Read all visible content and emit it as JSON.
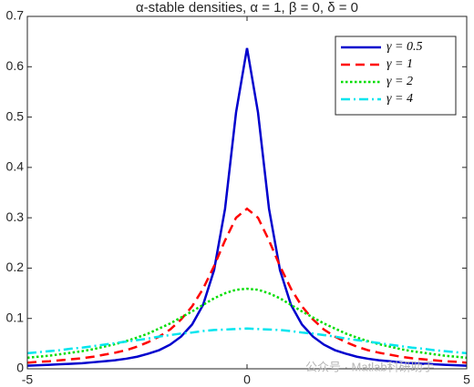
{
  "chart_data": {
    "type": "line",
    "title": "α-stable densities, α = 1, β = 0, δ = 0",
    "x": [
      -5,
      -4.75,
      -4.5,
      -4.25,
      -4,
      -3.75,
      -3.5,
      -3.25,
      -3,
      -2.75,
      -2.5,
      -2.25,
      -2,
      -1.75,
      -1.5,
      -1.25,
      -1,
      -0.75,
      -0.5,
      -0.25,
      0,
      0.25,
      0.5,
      0.75,
      1,
      1.25,
      1.5,
      1.75,
      2,
      2.25,
      2.5,
      2.75,
      3,
      3.25,
      3.5,
      3.75,
      4,
      4.25,
      4.5,
      4.75,
      5
    ],
    "series": [
      {
        "name": "γ = 0.5",
        "color": "#0000cd",
        "line_style": "solid",
        "values": [
          0.006,
          0.007,
          0.008,
          0.009,
          0.01,
          0.011,
          0.013,
          0.015,
          0.017,
          0.02,
          0.024,
          0.03,
          0.037,
          0.048,
          0.064,
          0.088,
          0.127,
          0.196,
          0.318,
          0.509,
          0.637,
          0.509,
          0.318,
          0.196,
          0.127,
          0.088,
          0.064,
          0.048,
          0.037,
          0.03,
          0.024,
          0.02,
          0.017,
          0.015,
          0.013,
          0.011,
          0.01,
          0.009,
          0.008,
          0.007,
          0.006
        ]
      },
      {
        "name": "γ = 1",
        "color": "#ff0000",
        "line_style": "dashed",
        "values": [
          0.012,
          0.014,
          0.015,
          0.017,
          0.019,
          0.021,
          0.024,
          0.028,
          0.032,
          0.037,
          0.044,
          0.053,
          0.064,
          0.078,
          0.098,
          0.124,
          0.159,
          0.204,
          0.255,
          0.3,
          0.318,
          0.3,
          0.255,
          0.204,
          0.159,
          0.124,
          0.098,
          0.078,
          0.064,
          0.053,
          0.044,
          0.037,
          0.032,
          0.028,
          0.024,
          0.021,
          0.019,
          0.017,
          0.015,
          0.014,
          0.012
        ]
      },
      {
        "name": "γ = 2",
        "color": "#00dd00",
        "line_style": "dotted",
        "values": [
          0.022,
          0.024,
          0.026,
          0.029,
          0.032,
          0.035,
          0.039,
          0.044,
          0.049,
          0.055,
          0.062,
          0.07,
          0.08,
          0.09,
          0.102,
          0.114,
          0.127,
          0.14,
          0.15,
          0.157,
          0.159,
          0.157,
          0.15,
          0.14,
          0.127,
          0.114,
          0.102,
          0.09,
          0.08,
          0.07,
          0.062,
          0.055,
          0.049,
          0.044,
          0.039,
          0.035,
          0.032,
          0.029,
          0.026,
          0.024,
          0.022
        ]
      },
      {
        "name": "γ = 4",
        "color": "#00e5ee",
        "line_style": "dashdot",
        "values": [
          0.031,
          0.033,
          0.035,
          0.037,
          0.04,
          0.042,
          0.045,
          0.048,
          0.051,
          0.054,
          0.057,
          0.06,
          0.064,
          0.067,
          0.07,
          0.072,
          0.075,
          0.077,
          0.078,
          0.079,
          0.08,
          0.079,
          0.078,
          0.077,
          0.075,
          0.072,
          0.07,
          0.067,
          0.064,
          0.06,
          0.057,
          0.054,
          0.051,
          0.048,
          0.045,
          0.042,
          0.04,
          0.037,
          0.035,
          0.033,
          0.031
        ]
      }
    ],
    "xlim": [
      -5,
      5
    ],
    "xticks": [
      -5,
      0,
      5
    ],
    "ylim": [
      0,
      0.7
    ],
    "yticks": [
      0,
      0.1,
      0.2,
      0.3,
      0.4,
      0.5,
      0.6,
      0.7
    ],
    "grid": false,
    "legend": "top-right",
    "watermark": "公众号 · Matlab科研助手"
  }
}
